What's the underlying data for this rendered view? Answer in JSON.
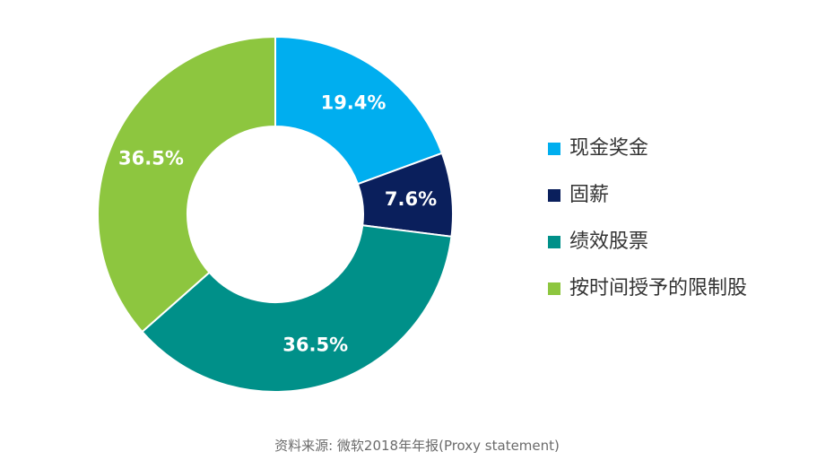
{
  "chart_data": {
    "type": "pie",
    "variant": "donut",
    "categories": [
      "现金奖金",
      "固薪",
      "绩效股票",
      "按时间授予的限制股"
    ],
    "values": [
      19.4,
      7.6,
      36.5,
      36.5
    ],
    "labels": [
      "19.4%",
      "7.6%",
      "36.5%",
      "36.5%"
    ],
    "colors": [
      "#00aeef",
      "#0a1f5c",
      "#009089",
      "#8dc63f"
    ],
    "legend_position": "right"
  },
  "source_note": "资料来源: 微软2018年年报(Proxy  statement)"
}
